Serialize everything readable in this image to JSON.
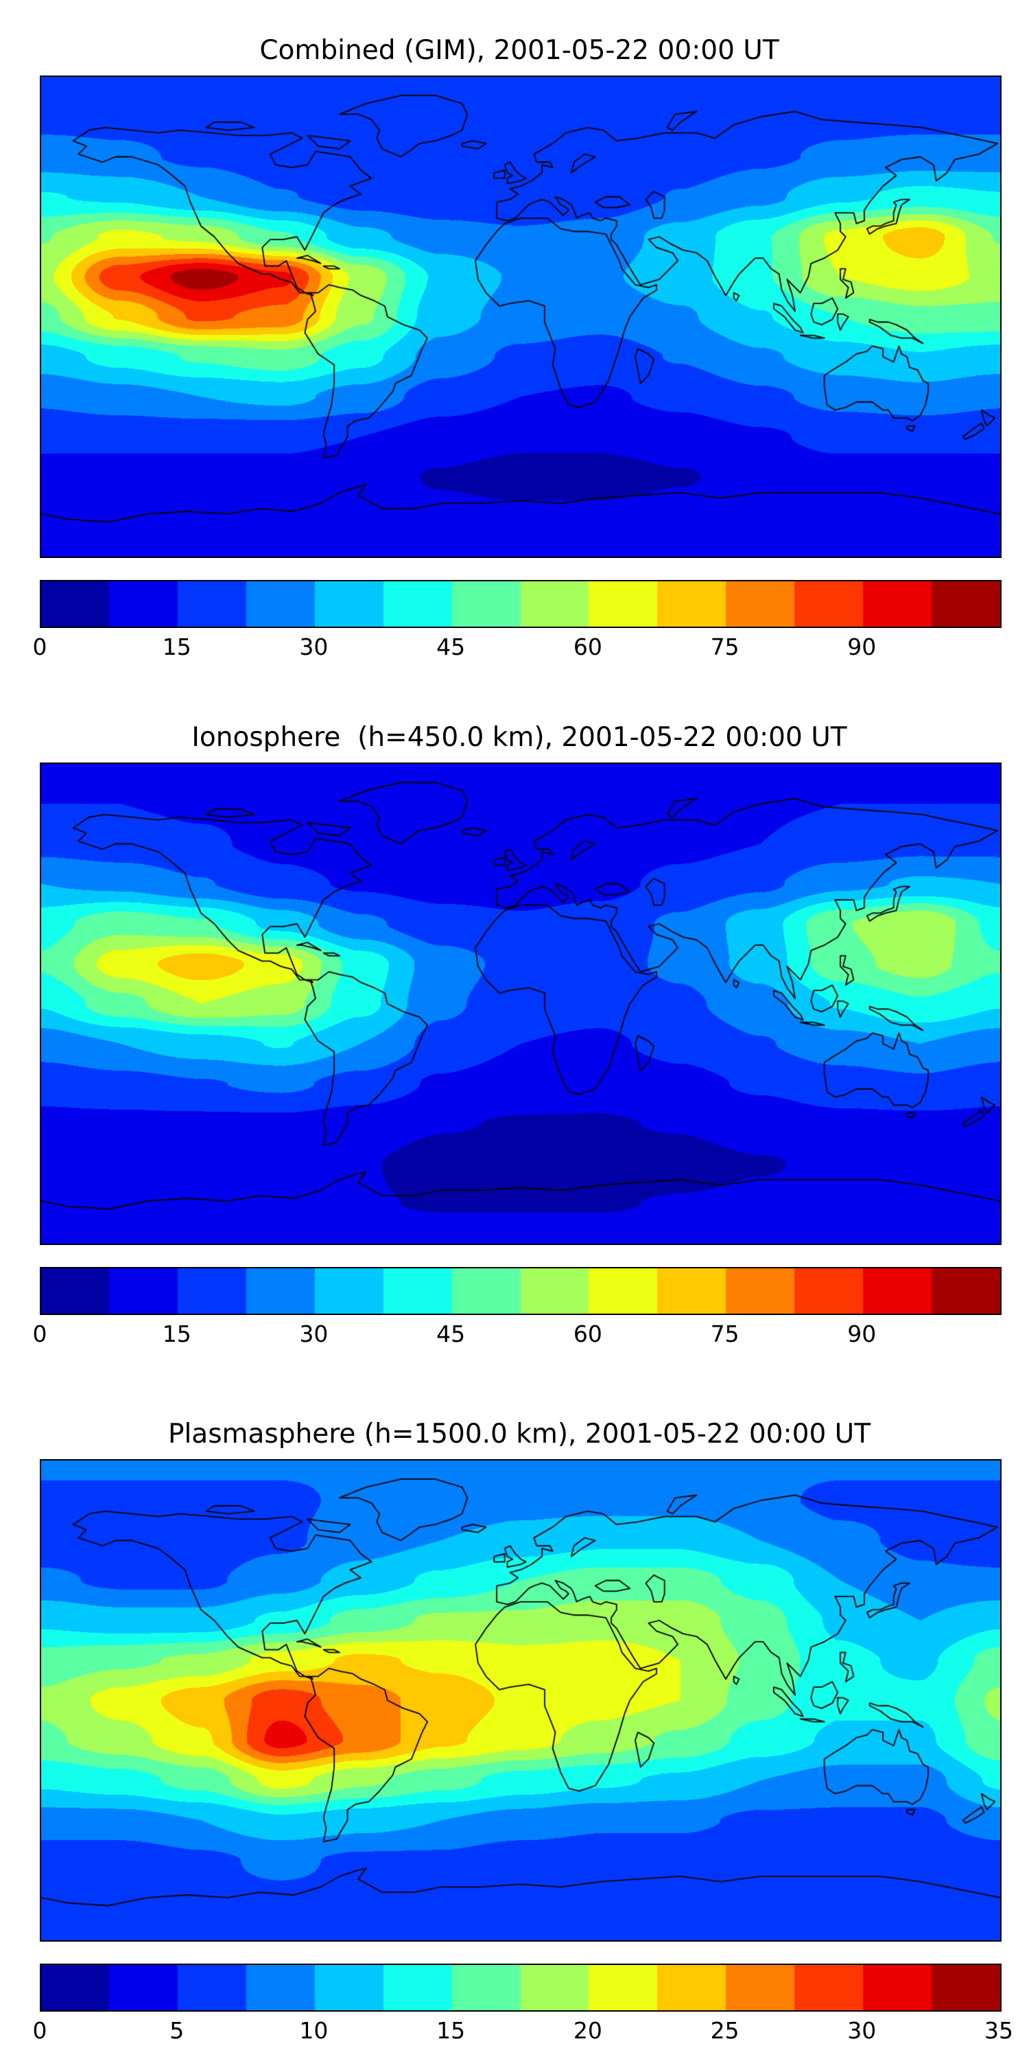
{
  "figure": {
    "background": "#ffffff",
    "frame_color": "#000000",
    "colormap": "jet"
  },
  "chart_data": [
    {
      "type": "heatmap",
      "title": "Combined (GIM), 2001-05-22 00:00 UT",
      "colormap": "jet",
      "projection": "equirectangular",
      "lon_range": [
        -180,
        180
      ],
      "lat_range": [
        -90,
        90
      ],
      "vmin": 0,
      "vmax": 105,
      "levels": 14,
      "colorbar_ticks": [
        0,
        15,
        30,
        45,
        60,
        75,
        90
      ],
      "lon": [
        -180,
        -150,
        -120,
        -90,
        -60,
        -30,
        0,
        30,
        60,
        90,
        120,
        150,
        180
      ],
      "lat": [
        90,
        75,
        60,
        45,
        30,
        15,
        0,
        -15,
        -30,
        -45,
        -60,
        -75,
        -90
      ],
      "values": [
        [
          18,
          18,
          18,
          18,
          18,
          18,
          18,
          18,
          18,
          18,
          18,
          18,
          18
        ],
        [
          20,
          20,
          19,
          18,
          17,
          17,
          17,
          17,
          18,
          19,
          20,
          20,
          20
        ],
        [
          26,
          24,
          21,
          18,
          16,
          15,
          15,
          16,
          18,
          21,
          24,
          26,
          26
        ],
        [
          38,
          36,
          30,
          23,
          19,
          17,
          16,
          18,
          23,
          28,
          36,
          40,
          38
        ],
        [
          52,
          62,
          58,
          46,
          32,
          26,
          24,
          26,
          33,
          44,
          62,
          72,
          52
        ],
        [
          58,
          88,
          102,
          92,
          58,
          36,
          29,
          29,
          34,
          44,
          60,
          64,
          58
        ],
        [
          50,
          68,
          84,
          80,
          54,
          33,
          27,
          25,
          29,
          37,
          45,
          50,
          50
        ],
        [
          34,
          40,
          46,
          50,
          40,
          27,
          21,
          19,
          23,
          29,
          34,
          37,
          34
        ],
        [
          24,
          27,
          30,
          32,
          27,
          19,
          15,
          14,
          17,
          21,
          25,
          27,
          24
        ],
        [
          17,
          17,
          17,
          17,
          15,
          11,
          9,
          9,
          11,
          14,
          17,
          17,
          17
        ],
        [
          12,
          12,
          12,
          12,
          10,
          7,
          5,
          5,
          7,
          10,
          12,
          12,
          12
        ],
        [
          14,
          14,
          13,
          12,
          10,
          9,
          9,
          9,
          10,
          11,
          13,
          14,
          14
        ],
        [
          14,
          14,
          14,
          14,
          14,
          14,
          14,
          14,
          14,
          14,
          14,
          14,
          14
        ]
      ]
    },
    {
      "type": "heatmap",
      "title": "Ionosphere  (h=450.0 km), 2001-05-22 00:00 UT",
      "colormap": "jet",
      "projection": "equirectangular",
      "lon_range": [
        -180,
        180
      ],
      "lat_range": [
        -90,
        90
      ],
      "vmin": 0,
      "vmax": 105,
      "levels": 14,
      "colorbar_ticks": [
        0,
        15,
        30,
        45,
        60,
        75,
        90
      ],
      "lon": [
        -180,
        -150,
        -120,
        -90,
        -60,
        -30,
        0,
        30,
        60,
        90,
        120,
        150,
        180
      ],
      "lat": [
        90,
        75,
        60,
        45,
        30,
        15,
        0,
        -15,
        -30,
        -45,
        -60,
        -75,
        -90
      ],
      "values": [
        [
          13,
          13,
          13,
          13,
          13,
          13,
          13,
          13,
          13,
          13,
          13,
          13,
          13
        ],
        [
          15,
          15,
          14,
          13,
          12,
          12,
          12,
          12,
          13,
          14,
          15,
          15,
          15
        ],
        [
          20,
          18,
          16,
          13,
          11,
          10,
          10,
          11,
          13,
          15,
          18,
          20,
          20
        ],
        [
          30,
          28,
          23,
          17,
          14,
          12,
          12,
          13,
          17,
          21,
          28,
          31,
          30
        ],
        [
          42,
          50,
          46,
          35,
          24,
          18,
          16,
          18,
          24,
          34,
          52,
          60,
          42
        ],
        [
          46,
          64,
          72,
          64,
          42,
          26,
          20,
          20,
          24,
          33,
          50,
          56,
          46
        ],
        [
          38,
          50,
          60,
          56,
          40,
          24,
          18,
          17,
          21,
          27,
          38,
          44,
          38
        ],
        [
          26,
          30,
          34,
          38,
          30,
          20,
          15,
          14,
          17,
          22,
          27,
          30,
          26
        ],
        [
          18,
          20,
          22,
          24,
          20,
          14,
          11,
          10,
          13,
          16,
          19,
          21,
          18
        ],
        [
          13,
          13,
          13,
          13,
          11,
          8,
          7,
          7,
          8,
          11,
          13,
          13,
          13
        ],
        [
          9,
          9,
          9,
          9,
          8,
          5,
          4,
          4,
          5,
          7,
          9,
          9,
          9
        ],
        [
          11,
          11,
          10,
          9,
          8,
          7,
          7,
          7,
          8,
          9,
          10,
          11,
          11
        ],
        [
          11,
          11,
          11,
          11,
          11,
          11,
          11,
          11,
          11,
          11,
          11,
          11,
          11
        ]
      ]
    },
    {
      "type": "heatmap",
      "title": "Plasmasphere (h=1500.0 km), 2001-05-22 00:00 UT",
      "colormap": "jet",
      "projection": "equirectangular",
      "lon_range": [
        -180,
        180
      ],
      "lat_range": [
        -90,
        90
      ],
      "vmin": 0,
      "vmax": 35,
      "levels": 14,
      "colorbar_ticks": [
        0,
        5,
        10,
        15,
        20,
        25,
        30,
        35
      ],
      "lon": [
        -180,
        -150,
        -120,
        -90,
        -60,
        -30,
        0,
        30,
        60,
        90,
        120,
        150,
        180
      ],
      "lat": [
        90,
        75,
        60,
        45,
        30,
        15,
        0,
        -15,
        -30,
        -45,
        -60,
        -75,
        -90
      ],
      "values": [
        [
          8,
          8,
          8,
          8,
          8,
          8,
          8,
          8,
          8,
          8,
          8,
          8,
          8
        ],
        [
          7,
          7,
          7,
          7,
          8,
          8,
          9,
          9,
          9,
          8,
          7,
          7,
          7
        ],
        [
          6,
          6,
          6,
          7,
          9,
          10,
          11,
          12,
          12,
          10,
          8,
          7,
          6
        ],
        [
          8,
          7,
          7,
          9,
          11,
          13,
          15,
          16,
          16,
          14,
          10,
          8,
          8
        ],
        [
          12,
          11,
          11,
          13,
          16,
          18,
          18,
          19,
          19,
          16,
          12,
          10,
          12
        ],
        [
          16,
          17,
          18,
          21,
          23,
          22,
          21,
          21,
          20,
          17,
          13,
          12,
          16
        ],
        [
          18,
          21,
          24,
          29,
          26,
          24,
          22,
          21,
          20,
          16,
          13,
          13,
          18
        ],
        [
          17,
          19,
          22,
          31,
          27,
          23,
          21,
          19,
          17,
          14,
          12,
          12,
          17
        ],
        [
          13,
          14,
          16,
          21,
          18,
          16,
          14,
          13,
          12,
          10,
          9,
          9,
          13
        ],
        [
          9,
          9,
          10,
          12,
          11,
          10,
          9,
          8,
          8,
          7,
          7,
          7,
          9
        ],
        [
          6,
          6,
          7,
          8,
          7,
          7,
          6,
          6,
          6,
          5,
          5,
          5,
          6
        ],
        [
          7,
          7,
          7,
          7,
          7,
          7,
          7,
          7,
          7,
          6,
          6,
          6,
          7
        ],
        [
          7,
          7,
          7,
          7,
          7,
          7,
          7,
          7,
          7,
          7,
          7,
          7,
          7
        ]
      ]
    }
  ]
}
